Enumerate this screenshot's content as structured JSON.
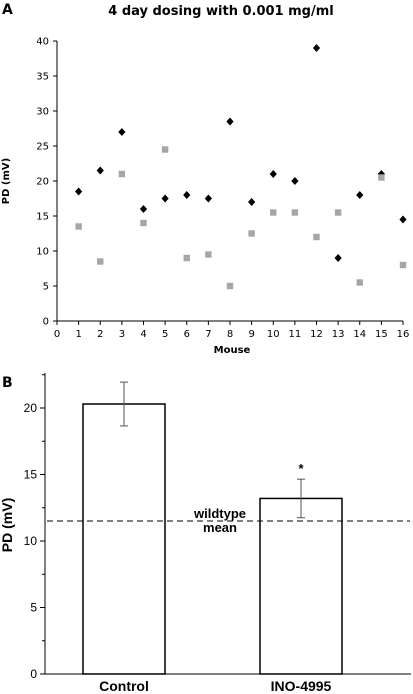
{
  "panels": {
    "a_label": "A",
    "b_label": "B"
  },
  "colors": {
    "series_dark": "#000000",
    "series_light": "#a6a6a6",
    "bar_fill": "#ffffff",
    "axis": "#000000"
  },
  "chart_data": [
    {
      "type": "scatter",
      "title": "4 day dosing with 0.001 mg/ml",
      "xlabel": "Mouse",
      "ylabel": "PD (mV)",
      "xlim": [
        0,
        16
      ],
      "ylim": [
        0,
        40
      ],
      "xticks": [
        "0",
        "1",
        "2",
        "3",
        "4",
        "5",
        "6",
        "7",
        "8",
        "9",
        "10",
        "11",
        "12",
        "13",
        "14",
        "15",
        "16"
      ],
      "yticks": [
        "0",
        "5",
        "10",
        "15",
        "20",
        "25",
        "30",
        "35",
        "40"
      ],
      "grid": false,
      "series": [
        {
          "marker": "diamond",
          "color": "#000000",
          "points": [
            {
              "x": 1,
              "y": 18.5
            },
            {
              "x": 2,
              "y": 21.5
            },
            {
              "x": 3,
              "y": 27
            },
            {
              "x": 4,
              "y": 16
            },
            {
              "x": 5,
              "y": 17.5
            },
            {
              "x": 6,
              "y": 18
            },
            {
              "x": 7,
              "y": 17.5
            },
            {
              "x": 8,
              "y": 28.5
            },
            {
              "x": 9,
              "y": 17
            },
            {
              "x": 10,
              "y": 21
            },
            {
              "x": 11,
              "y": 20
            },
            {
              "x": 12,
              "y": 39
            },
            {
              "x": 13,
              "y": 9
            },
            {
              "x": 14,
              "y": 18
            },
            {
              "x": 15,
              "y": 21
            },
            {
              "x": 16,
              "y": 14.5
            }
          ]
        },
        {
          "marker": "square",
          "color": "#a6a6a6",
          "points": [
            {
              "x": 1,
              "y": 13.5
            },
            {
              "x": 2,
              "y": 8.5
            },
            {
              "x": 3,
              "y": 21
            },
            {
              "x": 4,
              "y": 14
            },
            {
              "x": 5,
              "y": 24.5
            },
            {
              "x": 6,
              "y": 9
            },
            {
              "x": 7,
              "y": 9.5
            },
            {
              "x": 8,
              "y": 5
            },
            {
              "x": 9,
              "y": 12.5
            },
            {
              "x": 10,
              "y": 15.5
            },
            {
              "x": 11,
              "y": 15.5
            },
            {
              "x": 12,
              "y": 12
            },
            {
              "x": 13,
              "y": 15.5
            },
            {
              "x": 14,
              "y": 5.5
            },
            {
              "x": 15,
              "y": 20.5
            },
            {
              "x": 16,
              "y": 8
            }
          ]
        }
      ]
    },
    {
      "type": "bar",
      "title": "",
      "xlabel": "",
      "ylabel": "PD (mV)",
      "categories": [
        "Control",
        "INO-4995"
      ],
      "values": [
        20.3,
        13.2
      ],
      "errors": [
        1.65,
        1.45
      ],
      "significance": [
        "",
        "*"
      ],
      "ylim": [
        0,
        23
      ],
      "yticks": [
        "0",
        "5",
        "10",
        "15",
        "20"
      ],
      "reference_line": {
        "y": 11.5,
        "style": "dashed",
        "label_lines": [
          "wildtype",
          "mean"
        ]
      },
      "grid": false
    }
  ]
}
